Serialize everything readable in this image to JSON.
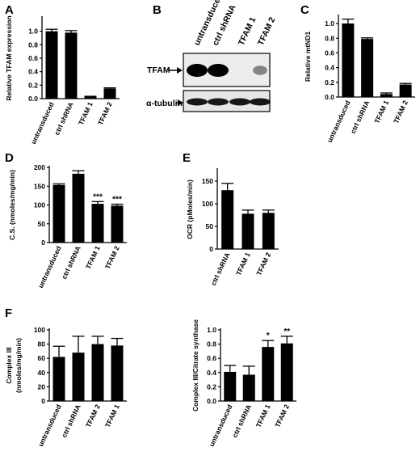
{
  "panel_letters": {
    "A": "A",
    "B": "B",
    "C": "C",
    "D": "D",
    "E": "E",
    "F": "F"
  },
  "blot": {
    "lane_labels": [
      "untransduced",
      "ctrl shRNA",
      "TFAM 1",
      "TFAM 2"
    ],
    "band_labels": {
      "tfam": "TFAM",
      "tubulin": "α-tubulin"
    },
    "tfam_intensity": [
      1.0,
      1.0,
      0.0,
      0.25
    ],
    "tubulin_intensity": [
      1.0,
      1.0,
      1.0,
      1.0
    ]
  },
  "chart_data": [
    {
      "id": "A",
      "type": "bar",
      "ylabel": "Relative TFAM expression",
      "categories": [
        "untransduced",
        "ctrl shRNA",
        "TFAM 1",
        "TFAM 2"
      ],
      "values": [
        1.0,
        0.98,
        0.03,
        0.15
      ],
      "errors": [
        0.03,
        0.03,
        0.005,
        0.01
      ],
      "ylim": [
        0,
        1.2
      ],
      "yticks": [
        "0.0",
        "0.2",
        "0.4",
        "0.6",
        "0.8",
        "1.0"
      ],
      "annotations": [
        "",
        "",
        "",
        ""
      ]
    },
    {
      "id": "C",
      "type": "bar",
      "ylabel": "Relative mtND1",
      "categories": [
        "untransduced",
        "ctrl shRNA",
        "TFAM 1",
        "TFAM 2"
      ],
      "values": [
        1.0,
        0.79,
        0.04,
        0.17
      ],
      "errors": [
        0.06,
        0.015,
        0.015,
        0.015
      ],
      "ylim": [
        0,
        1.1
      ],
      "yticks": [
        "0.0",
        "0.2",
        "0.4",
        "0.6",
        "0.8",
        "1.0"
      ],
      "annotations": [
        "",
        "",
        "",
        ""
      ]
    },
    {
      "id": "D",
      "type": "bar",
      "ylabel": "C.S. (nmoles/mg/min)",
      "categories": [
        "untransduced",
        "ctrl shRNA",
        "TFAM 1",
        "TFAM 2"
      ],
      "values": [
        153,
        183,
        103,
        98
      ],
      "errors": [
        3,
        8,
        6,
        4
      ],
      "ylim": [
        0,
        200
      ],
      "yticks": [
        "0",
        "50",
        "100",
        "150",
        "200"
      ],
      "annotations": [
        "",
        "",
        "***",
        "***"
      ]
    },
    {
      "id": "E",
      "type": "bar",
      "ylabel": "OCR (pMoles/min)",
      "categories": [
        "ctrl shRNA",
        "TFAM 1",
        "TFAM 2"
      ],
      "values": [
        130,
        78,
        80
      ],
      "errors": [
        15,
        8,
        6
      ],
      "ylim": [
        0,
        175
      ],
      "yticks": [
        "0",
        "50",
        "100",
        "150"
      ],
      "annotations": [
        "",
        "",
        ""
      ]
    },
    {
      "id": "F1",
      "type": "bar",
      "ylabel": "Complex III (nmoles/mg/min)",
      "categories": [
        "untransduced",
        "ctrl shRNA",
        "TFAM 2",
        "TFAM 1"
      ],
      "values": [
        62,
        68,
        80,
        78
      ],
      "errors": [
        15,
        23,
        11,
        10
      ],
      "ylim": [
        0,
        100
      ],
      "yticks": [
        "0",
        "20",
        "40",
        "60",
        "80",
        "100"
      ],
      "annotations": [
        "",
        "",
        "",
        ""
      ]
    },
    {
      "id": "F2",
      "type": "bar",
      "ylabel": "Complex III/Citrate synthase",
      "categories": [
        "untransduced",
        "ctrl shRNA",
        "TFAM 1",
        "TFAM 2"
      ],
      "values": [
        0.41,
        0.37,
        0.76,
        0.81
      ],
      "errors": [
        0.09,
        0.12,
        0.09,
        0.1
      ],
      "ylim": [
        0,
        1.0
      ],
      "yticks": [
        "0.0",
        "0.2",
        "0.4",
        "0.6",
        "0.8",
        "1.0"
      ],
      "annotations": [
        "",
        "",
        "*",
        "**"
      ]
    }
  ]
}
